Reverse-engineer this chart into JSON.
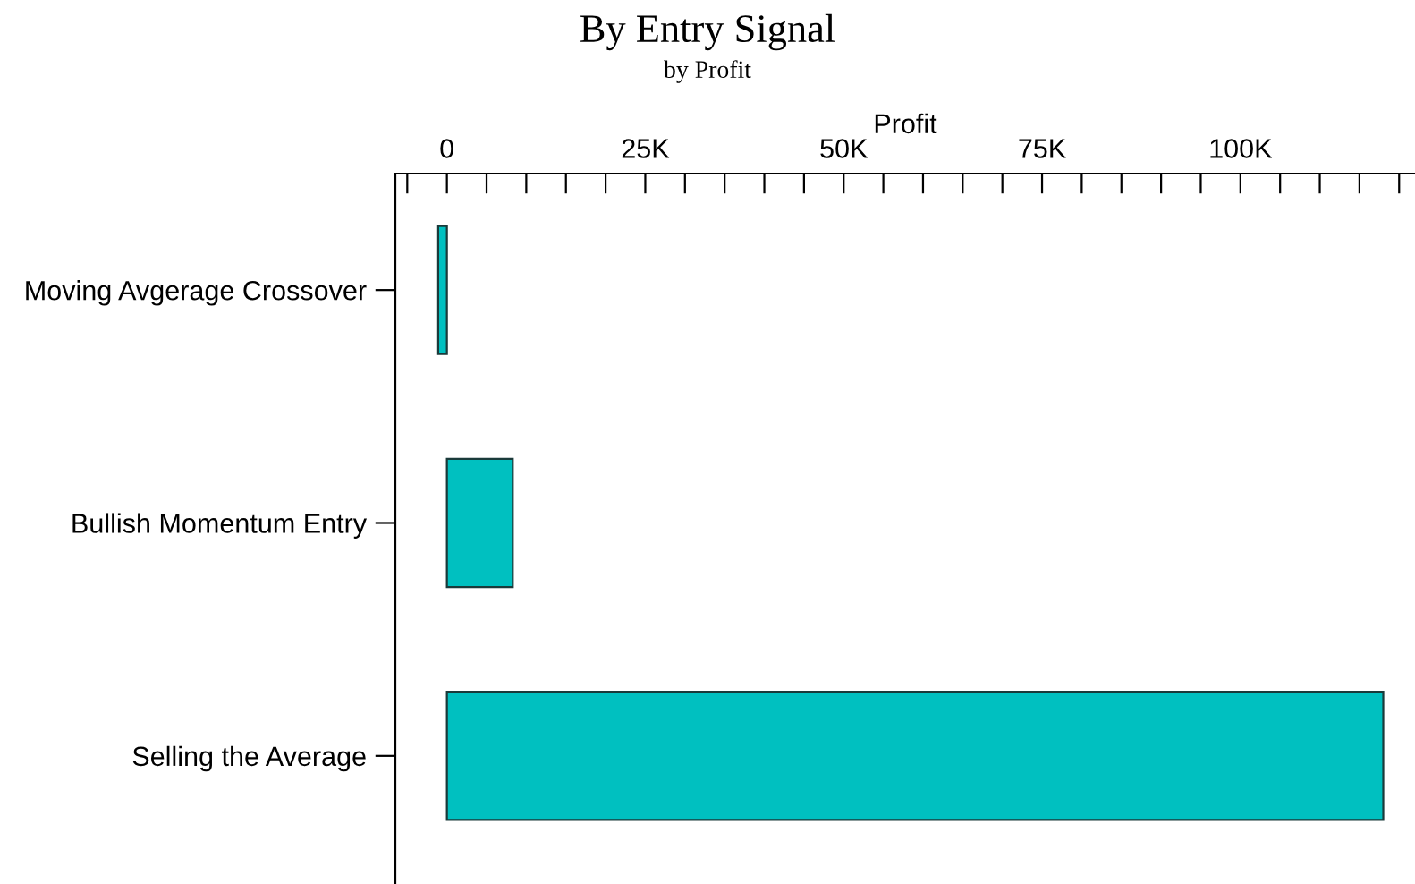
{
  "chart_data": {
    "type": "bar",
    "orientation": "horizontal",
    "title": "By Entry Signal",
    "subtitle": "by Profit",
    "xlabel": "Profit",
    "categories": [
      "Moving Avgerage Crossover",
      "Bullish Momentum Entry",
      "Selling the Average"
    ],
    "values": [
      -1100,
      8300,
      118000
    ],
    "color": "#00c0c0",
    "xlim": [
      -6500,
      122000
    ],
    "xticks": [
      {
        "value": -5000,
        "label": null
      },
      {
        "value": 0,
        "label": "0"
      },
      {
        "value": 5000,
        "label": null
      },
      {
        "value": 10000,
        "label": null
      },
      {
        "value": 15000,
        "label": null
      },
      {
        "value": 20000,
        "label": null
      },
      {
        "value": 25000,
        "label": "25K"
      },
      {
        "value": 30000,
        "label": null
      },
      {
        "value": 35000,
        "label": null
      },
      {
        "value": 40000,
        "label": null
      },
      {
        "value": 45000,
        "label": null
      },
      {
        "value": 50000,
        "label": "50K"
      },
      {
        "value": 55000,
        "label": null
      },
      {
        "value": 60000,
        "label": null
      },
      {
        "value": 65000,
        "label": null
      },
      {
        "value": 70000,
        "label": null
      },
      {
        "value": 75000,
        "label": "75K"
      },
      {
        "value": 80000,
        "label": null
      },
      {
        "value": 85000,
        "label": null
      },
      {
        "value": 90000,
        "label": null
      },
      {
        "value": 95000,
        "label": null
      },
      {
        "value": 100000,
        "label": "100K"
      },
      {
        "value": 105000,
        "label": null
      },
      {
        "value": 110000,
        "label": null
      },
      {
        "value": 115000,
        "label": null
      },
      {
        "value": 120000,
        "label": null
      }
    ],
    "grid": false,
    "legend": false
  }
}
